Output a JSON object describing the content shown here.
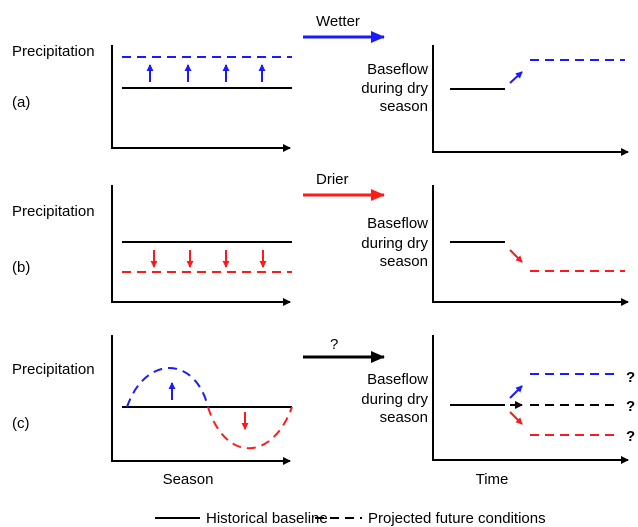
{
  "panels": [
    {
      "label": "(a)",
      "left_axis_label": "Precipitation",
      "arrow_label": "Wetter",
      "right_axis_label": [
        "Baseflow",
        "during dry",
        "season"
      ]
    },
    {
      "label": "(b)",
      "left_axis_label": "Precipitation",
      "arrow_label": "Drier",
      "right_axis_label": [
        "Baseflow",
        "during dry",
        "season"
      ]
    },
    {
      "label": "(c)",
      "left_axis_label": "Precipitation",
      "arrow_label": "?",
      "right_axis_label": [
        "Baseflow",
        "during dry",
        "season"
      ],
      "outcome_marks": [
        "?",
        "?",
        "?"
      ]
    }
  ],
  "x_axis_labels": {
    "left": "Season",
    "right": "Time"
  },
  "legend": {
    "baseline": "Historical baseline",
    "projected": "Projected future conditions"
  }
}
